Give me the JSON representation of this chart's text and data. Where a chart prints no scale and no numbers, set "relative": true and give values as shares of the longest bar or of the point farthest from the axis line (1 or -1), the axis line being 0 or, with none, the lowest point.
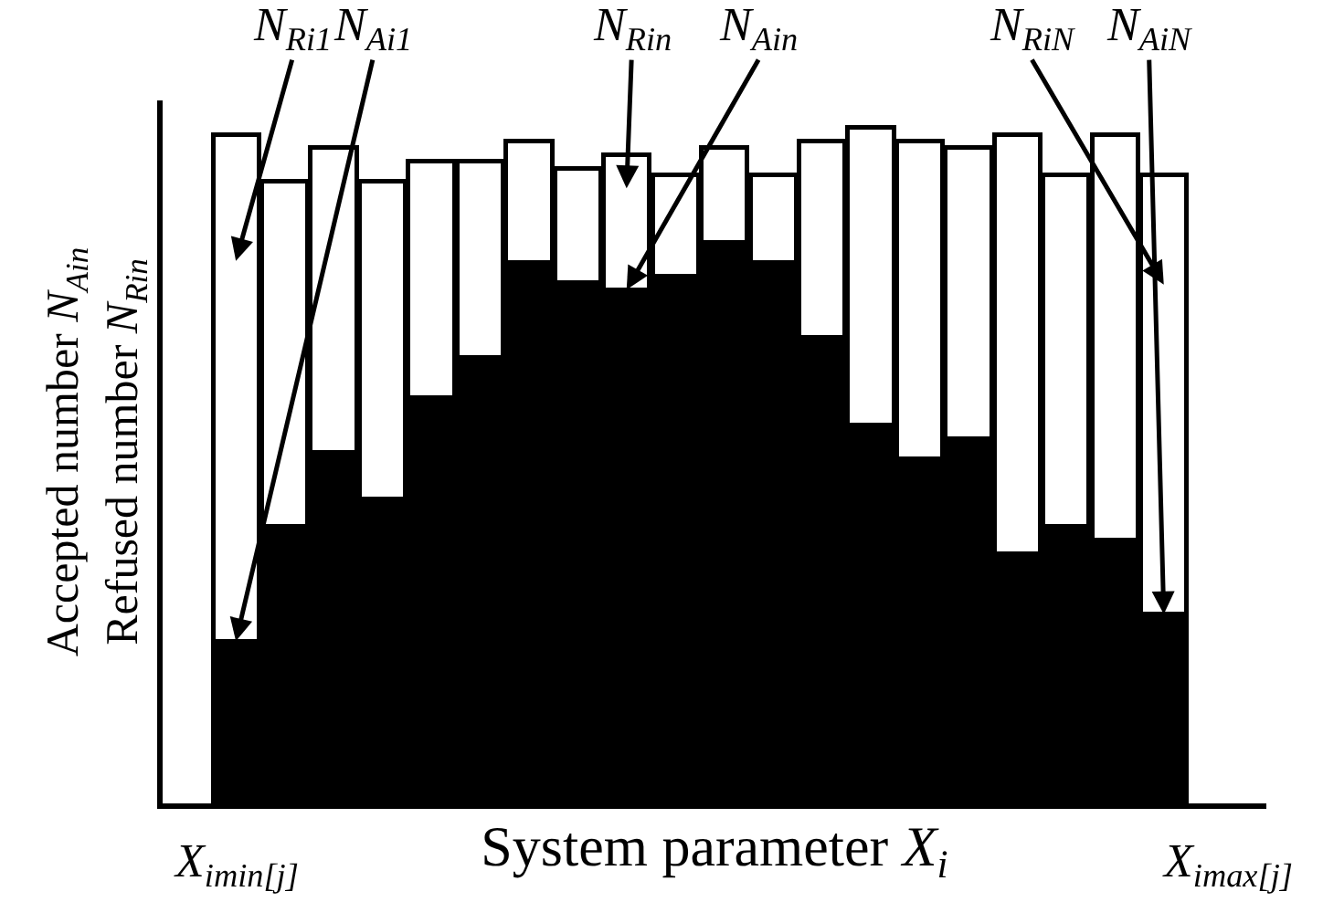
{
  "chart_data": {
    "type": "bar",
    "stacked": true,
    "relative": true,
    "xlabel": "System parameter X$_{i}$",
    "ylabel": "Accepted number N$_{Ain}$\nRefused number N$_{Rin}$",
    "categories": [
      null,
      null,
      null,
      null,
      null,
      null,
      null,
      null,
      null,
      null,
      null,
      null,
      null,
      null,
      null,
      null,
      null,
      null,
      null,
      null
    ],
    "series": [
      {
        "color": "#000000",
        "values": [
          0.24,
          0.41,
          0.52,
          0.45,
          0.6,
          0.66,
          0.8,
          0.77,
          0.76,
          0.78,
          0.83,
          0.8,
          0.69,
          0.56,
          0.51,
          0.54,
          0.37,
          0.41,
          0.39,
          0.28
        ]
      },
      {
        "color": "#ffffff",
        "values": [
          0.75,
          0.51,
          0.45,
          0.47,
          0.35,
          0.29,
          0.18,
          0.17,
          0.2,
          0.15,
          0.14,
          0.13,
          0.29,
          0.44,
          0.47,
          0.43,
          0.62,
          0.52,
          0.6,
          0.65
        ]
      }
    ],
    "annotations": [
      "N$_{Ri1}$",
      "N$_{Ai1}$",
      "N$_{Rin}$",
      "N$_{Ain}$",
      "N$_{RiN}$",
      "N$_{AiN}$",
      "X$_{imin[j]}$",
      "X$_{imax[j]}$"
    ]
  }
}
